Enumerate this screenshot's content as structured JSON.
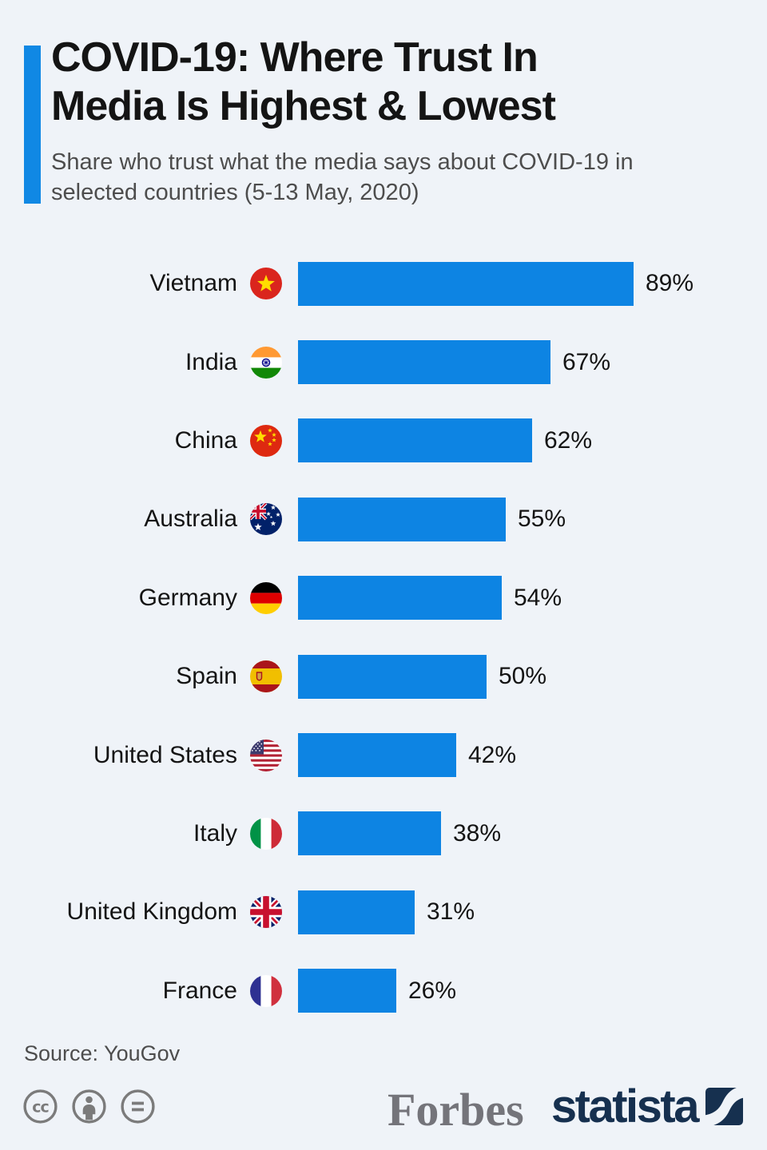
{
  "header": {
    "title_lines": [
      "COVID-19: Where Trust In",
      "Media Is Highest & Lowest"
    ],
    "subtitle": "Share who trust what the media says about COVID-19 in selected countries (5-13 May, 2020)"
  },
  "chart_data": {
    "type": "bar",
    "orientation": "horizontal",
    "title": "COVID-19: Where Trust In Media Is Highest & Lowest",
    "subtitle": "Share who trust what the media says about COVID-19 in selected countries (5-13 May, 2020)",
    "xlabel": "",
    "ylabel": "",
    "value_suffix": "%",
    "xlim": [
      0,
      100
    ],
    "grid": false,
    "legend": false,
    "bar_color": "#0d84e3",
    "categories": [
      "Vietnam",
      "India",
      "China",
      "Australia",
      "Germany",
      "Spain",
      "United States",
      "Italy",
      "United Kingdom",
      "France"
    ],
    "values": [
      89,
      67,
      62,
      55,
      54,
      50,
      42,
      38,
      31,
      26
    ],
    "rows": [
      {
        "label": "Vietnam",
        "value": 89,
        "display": "89%",
        "code": "vn",
        "flag_icon": "vietnam-flag-icon"
      },
      {
        "label": "India",
        "value": 67,
        "display": "67%",
        "code": "in",
        "flag_icon": "india-flag-icon"
      },
      {
        "label": "China",
        "value": 62,
        "display": "62%",
        "code": "cn",
        "flag_icon": "china-flag-icon"
      },
      {
        "label": "Australia",
        "value": 55,
        "display": "55%",
        "code": "au",
        "flag_icon": "australia-flag-icon"
      },
      {
        "label": "Germany",
        "value": 54,
        "display": "54%",
        "code": "de",
        "flag_icon": "germany-flag-icon"
      },
      {
        "label": "Spain",
        "value": 50,
        "display": "50%",
        "code": "es",
        "flag_icon": "spain-flag-icon"
      },
      {
        "label": "United States",
        "value": 42,
        "display": "42%",
        "code": "us",
        "flag_icon": "united-states-flag-icon"
      },
      {
        "label": "Italy",
        "value": 38,
        "display": "38%",
        "code": "it",
        "flag_icon": "italy-flag-icon"
      },
      {
        "label": "United Kingdom",
        "value": 31,
        "display": "31%",
        "code": "gb",
        "flag_icon": "united-kingdom-flag-icon"
      },
      {
        "label": "France",
        "value": 26,
        "display": "26%",
        "code": "fr",
        "flag_icon": "france-flag-icon"
      }
    ]
  },
  "footer": {
    "source": "Source: YouGov",
    "license_icons": [
      "cc-icon",
      "attribution-icon",
      "equal-icon"
    ],
    "brand_forbes": "Forbes",
    "brand_statista": "statista"
  },
  "colors": {
    "background": "#eff3f8",
    "bar": "#0d84e3",
    "accent": "#1088e4",
    "title": "#141414",
    "subtitle": "#4d4d4d",
    "forbes_gray": "#74747a",
    "statista_navy": "#16304f",
    "license_gray": "#7b7b7b"
  }
}
